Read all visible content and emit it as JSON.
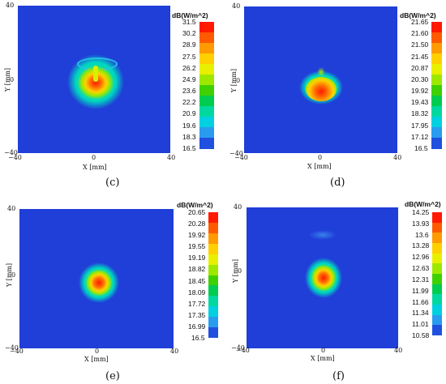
{
  "chart_data": [
    {
      "type": "heatmap",
      "caption": "(c)",
      "xlabel": "X [mm]",
      "ylabel": "Y [mm]",
      "x_ticks": [
        "−40",
        "0",
        "40"
      ],
      "y_ticks": [
        "40",
        "0",
        "−40"
      ],
      "xlim": [
        -40,
        40
      ],
      "ylim": [
        -40,
        40
      ],
      "colorbar": {
        "title": "dB(W/m^2)",
        "labels": [
          "31.5",
          "30.2",
          "28.9",
          "27.5",
          "26.2",
          "24.9",
          "23.6",
          "22.2",
          "20.9",
          "19.6",
          "18.3",
          "16.5"
        ]
      }
    },
    {
      "type": "heatmap",
      "caption": "(d)",
      "xlabel": "X [mm]",
      "ylabel": "Y [mm]",
      "x_ticks": [
        "−40",
        "0",
        "40"
      ],
      "y_ticks": [
        "40",
        "0",
        "−40"
      ],
      "xlim": [
        -40,
        40
      ],
      "ylim": [
        -40,
        40
      ],
      "colorbar": {
        "title": "dB(W/m^2)",
        "labels": [
          "21.65",
          "21.60",
          "21.50",
          "21.45",
          "20.87",
          "20.30",
          "19.92",
          "19.43",
          "18.32",
          "17.95",
          "17.12",
          "16.5"
        ]
      }
    },
    {
      "type": "heatmap",
      "caption": "(e)",
      "xlabel": "X [mm]",
      "ylabel": "Y [mm]",
      "x_ticks": [
        "−40",
        "0",
        "40"
      ],
      "y_ticks": [
        "40",
        "0",
        "−40"
      ],
      "xlim": [
        -40,
        40
      ],
      "ylim": [
        -40,
        40
      ],
      "colorbar": {
        "title": "dB(W/m^2)",
        "labels": [
          "20.65",
          "20.28",
          "19.92",
          "19.55",
          "19.19",
          "18.82",
          "18.45",
          "18.09",
          "17.72",
          "17.35",
          "16.99",
          "16.5"
        ]
      }
    },
    {
      "type": "heatmap",
      "caption": "(f)",
      "xlabel": "X [mm]",
      "ylabel": "Y [mm]",
      "x_ticks": [
        "−40",
        "0",
        "40"
      ],
      "y_ticks": [
        "40",
        "0",
        "−40"
      ],
      "xlim": [
        -40,
        40
      ],
      "ylim": [
        -40,
        40
      ],
      "colorbar": {
        "title": "dB(W/m^2)",
        "labels": [
          "14.25",
          "13.93",
          "13.6",
          "13.28",
          "12.96",
          "12.63",
          "12.31",
          "11.99",
          "11.66",
          "11.34",
          "11.01",
          "10.58"
        ]
      }
    }
  ],
  "colors": {
    "colorbar_stops": [
      "#ff1a00",
      "#ff5a00",
      "#ff9a00",
      "#ffd000",
      "#e8f000",
      "#9ee800",
      "#3ed000",
      "#00cc50",
      "#00d8a0",
      "#00d0e0",
      "#2a9cf0",
      "#2050e0"
    ],
    "background": "#1f3fd8"
  }
}
